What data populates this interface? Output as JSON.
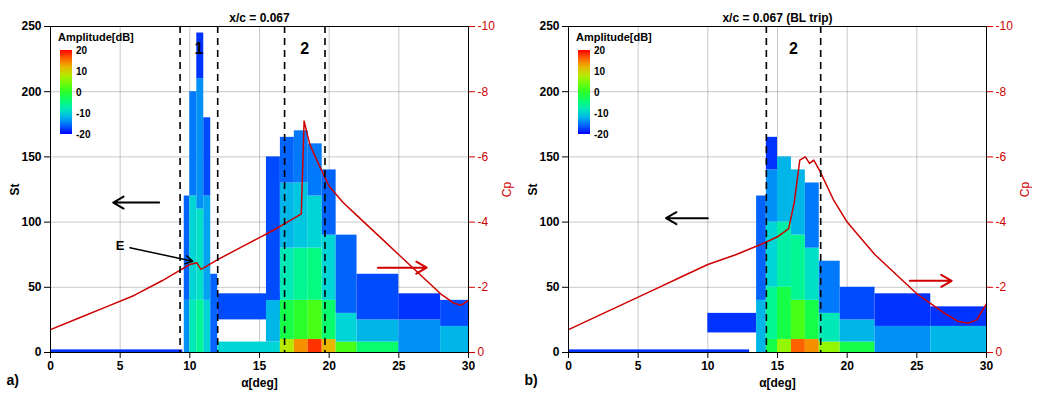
{
  "chart_data": [
    {
      "type": "heatmap",
      "title": "x/c = 0.067",
      "panel_label": "a)",
      "xlabel": "α[deg]",
      "ylabel": "St",
      "y2label": "Cp",
      "xlim": [
        0,
        30
      ],
      "xticks": [
        0,
        5,
        10,
        15,
        20,
        25,
        30
      ],
      "ylim": [
        0,
        250
      ],
      "yticks": [
        0,
        50,
        100,
        150,
        200,
        250
      ],
      "y2lim": [
        0,
        -10
      ],
      "y2ticks": [
        0,
        -2,
        -4,
        -6,
        -8,
        -10
      ],
      "grid": true,
      "colorbar": {
        "label": "Amplitude[dB]",
        "range": [
          -20,
          20
        ],
        "ticks": [
          20,
          10,
          0,
          -10,
          -20
        ]
      },
      "cells": [
        {
          "x1": 0,
          "x2": 9.5,
          "y1": 0,
          "y2": 2,
          "value": -18
        },
        {
          "x1": 9.6,
          "x2": 10.0,
          "y1": 0,
          "y2": 40,
          "value": -14
        },
        {
          "x1": 9.6,
          "x2": 10.0,
          "y1": 40,
          "y2": 120,
          "value": -16
        },
        {
          "x1": 10.0,
          "x2": 10.5,
          "y1": 0,
          "y2": 40,
          "value": -8
        },
        {
          "x1": 10.0,
          "x2": 10.5,
          "y1": 40,
          "y2": 120,
          "value": -10
        },
        {
          "x1": 10.0,
          "x2": 10.5,
          "y1": 120,
          "y2": 200,
          "value": -15
        },
        {
          "x1": 10.5,
          "x2": 11.0,
          "y1": 0,
          "y2": 40,
          "value": -6
        },
        {
          "x1": 10.5,
          "x2": 11.0,
          "y1": 40,
          "y2": 110,
          "value": -9
        },
        {
          "x1": 10.5,
          "x2": 11.0,
          "y1": 110,
          "y2": 210,
          "value": -14
        },
        {
          "x1": 10.5,
          "x2": 11.0,
          "y1": 210,
          "y2": 245,
          "value": -18
        },
        {
          "x1": 11.0,
          "x2": 11.5,
          "y1": 0,
          "y2": 40,
          "value": -10
        },
        {
          "x1": 11.0,
          "x2": 11.5,
          "y1": 40,
          "y2": 120,
          "value": -13
        },
        {
          "x1": 11.0,
          "x2": 11.5,
          "y1": 120,
          "y2": 180,
          "value": -17
        },
        {
          "x1": 11.5,
          "x2": 12.0,
          "y1": 0,
          "y2": 60,
          "value": -16
        },
        {
          "x1": 12.0,
          "x2": 16.5,
          "y1": 0,
          "y2": 8,
          "value": -10
        },
        {
          "x1": 12.0,
          "x2": 16.5,
          "y1": 25,
          "y2": 45,
          "value": -17
        },
        {
          "x1": 15.5,
          "x2": 16.5,
          "y1": 8,
          "y2": 40,
          "value": -12
        },
        {
          "x1": 15.5,
          "x2": 16.5,
          "y1": 40,
          "y2": 150,
          "value": -17
        },
        {
          "x1": 16.5,
          "x2": 17.5,
          "y1": 0,
          "y2": 10,
          "value": 8
        },
        {
          "x1": 16.5,
          "x2": 17.5,
          "y1": 10,
          "y2": 40,
          "value": -2
        },
        {
          "x1": 16.5,
          "x2": 17.5,
          "y1": 40,
          "y2": 80,
          "value": -8
        },
        {
          "x1": 16.5,
          "x2": 17.5,
          "y1": 80,
          "y2": 130,
          "value": -12
        },
        {
          "x1": 16.5,
          "x2": 17.5,
          "y1": 130,
          "y2": 165,
          "value": -16
        },
        {
          "x1": 17.5,
          "x2": 18.5,
          "y1": 0,
          "y2": 10,
          "value": 14
        },
        {
          "x1": 17.5,
          "x2": 18.5,
          "y1": 10,
          "y2": 40,
          "value": 0
        },
        {
          "x1": 17.5,
          "x2": 18.5,
          "y1": 40,
          "y2": 80,
          "value": -6
        },
        {
          "x1": 17.5,
          "x2": 18.5,
          "y1": 80,
          "y2": 130,
          "value": -11
        },
        {
          "x1": 17.5,
          "x2": 18.5,
          "y1": 130,
          "y2": 170,
          "value": -15
        },
        {
          "x1": 18.5,
          "x2": 19.5,
          "y1": 0,
          "y2": 10,
          "value": 18
        },
        {
          "x1": 18.5,
          "x2": 19.5,
          "y1": 10,
          "y2": 40,
          "value": 2
        },
        {
          "x1": 18.5,
          "x2": 19.5,
          "y1": 40,
          "y2": 80,
          "value": -5
        },
        {
          "x1": 18.5,
          "x2": 19.5,
          "y1": 80,
          "y2": 120,
          "value": -10
        },
        {
          "x1": 18.5,
          "x2": 19.5,
          "y1": 120,
          "y2": 160,
          "value": -15
        },
        {
          "x1": 19.5,
          "x2": 20.5,
          "y1": 0,
          "y2": 10,
          "value": 12
        },
        {
          "x1": 19.5,
          "x2": 20.5,
          "y1": 10,
          "y2": 40,
          "value": -4
        },
        {
          "x1": 19.5,
          "x2": 20.5,
          "y1": 40,
          "y2": 90,
          "value": -10
        },
        {
          "x1": 19.5,
          "x2": 20.5,
          "y1": 90,
          "y2": 140,
          "value": -16
        },
        {
          "x1": 20.5,
          "x2": 22,
          "y1": 0,
          "y2": 8,
          "value": 2
        },
        {
          "x1": 20.5,
          "x2": 22,
          "y1": 8,
          "y2": 30,
          "value": -10
        },
        {
          "x1": 20.5,
          "x2": 22,
          "y1": 30,
          "y2": 90,
          "value": -16
        },
        {
          "x1": 22,
          "x2": 25,
          "y1": 0,
          "y2": 8,
          "value": -4
        },
        {
          "x1": 22,
          "x2": 25,
          "y1": 8,
          "y2": 25,
          "value": -12
        },
        {
          "x1": 22,
          "x2": 25,
          "y1": 25,
          "y2": 60,
          "value": -17
        },
        {
          "x1": 25,
          "x2": 28,
          "y1": 0,
          "y2": 25,
          "value": -14
        },
        {
          "x1": 25,
          "x2": 28,
          "y1": 25,
          "y2": 45,
          "value": -18
        },
        {
          "x1": 28,
          "x2": 30,
          "y1": 0,
          "y2": 20,
          "value": -12
        },
        {
          "x1": 28,
          "x2": 30,
          "y1": 20,
          "y2": 40,
          "value": -17
        }
      ],
      "series": [
        {
          "name": "Cp",
          "type": "line",
          "axis": "y2",
          "color": "#d00000",
          "x": [
            0,
            2,
            4,
            6,
            8,
            9,
            10,
            10.5,
            10.8,
            11.2,
            12,
            14,
            16,
            17,
            18,
            18.2,
            18.6,
            19,
            20,
            21,
            22,
            23,
            24,
            25,
            26,
            27,
            28,
            29,
            29.5,
            30
          ],
          "values": [
            -0.7,
            -1.05,
            -1.4,
            -1.75,
            -2.2,
            -2.45,
            -2.7,
            -2.75,
            -2.55,
            -2.65,
            -2.85,
            -3.3,
            -3.75,
            -4.0,
            -4.25,
            -7.1,
            -6.4,
            -6.0,
            -5.1,
            -4.6,
            -4.2,
            -3.8,
            -3.4,
            -3.0,
            -2.6,
            -2.2,
            -1.8,
            -1.5,
            -1.45,
            -1.6
          ]
        }
      ],
      "regions": [
        {
          "label": "1",
          "x": [
            9.3,
            12
          ]
        },
        {
          "label": "2",
          "x": [
            16.8,
            19.7
          ]
        }
      ],
      "annotations": [
        {
          "text": "E",
          "x": 5,
          "y": 82,
          "x_to": 10.2,
          "y_to": 70
        }
      ],
      "arrows": [
        {
          "x1": 7.8,
          "x2": 4.5,
          "y1": 115,
          "y2": 115,
          "color": "#000000"
        },
        {
          "x1": 23.5,
          "x2": 27,
          "y1": 65,
          "y2": 65,
          "color": "#d00000"
        }
      ]
    },
    {
      "type": "heatmap",
      "title": "x/c = 0.067 (BL trip)",
      "panel_label": "b)",
      "xlabel": "α[deg]",
      "ylabel": "St",
      "y2label": "Cp",
      "xlim": [
        0,
        30
      ],
      "xticks": [
        0,
        5,
        10,
        15,
        20,
        25,
        30
      ],
      "ylim": [
        0,
        250
      ],
      "yticks": [
        0,
        50,
        100,
        150,
        200,
        250
      ],
      "y2lim": [
        0,
        -10
      ],
      "y2ticks": [
        0,
        -2,
        -4,
        -6,
        -8,
        -10
      ],
      "grid": true,
      "colorbar": {
        "label": "Amplitude[dB]",
        "range": [
          -20,
          20
        ],
        "ticks": [
          20,
          10,
          0,
          -10,
          -20
        ]
      },
      "cells": [
        {
          "x1": 0,
          "x2": 13,
          "y1": 0,
          "y2": 2,
          "value": -18
        },
        {
          "x1": 10,
          "x2": 13.5,
          "y1": 15,
          "y2": 30,
          "value": -18
        },
        {
          "x1": 13.5,
          "x2": 14.2,
          "y1": 0,
          "y2": 40,
          "value": -12
        },
        {
          "x1": 13.5,
          "x2": 14.2,
          "y1": 40,
          "y2": 120,
          "value": -16
        },
        {
          "x1": 14.2,
          "x2": 15,
          "y1": 0,
          "y2": 10,
          "value": -2
        },
        {
          "x1": 14.2,
          "x2": 15,
          "y1": 10,
          "y2": 50,
          "value": -6
        },
        {
          "x1": 14.2,
          "x2": 15,
          "y1": 50,
          "y2": 100,
          "value": -10
        },
        {
          "x1": 14.2,
          "x2": 15,
          "y1": 100,
          "y2": 140,
          "value": -14
        },
        {
          "x1": 14.2,
          "x2": 15,
          "y1": 140,
          "y2": 165,
          "value": -18
        },
        {
          "x1": 15,
          "x2": 16,
          "y1": 0,
          "y2": 10,
          "value": 6
        },
        {
          "x1": 15,
          "x2": 16,
          "y1": 10,
          "y2": 50,
          "value": -2
        },
        {
          "x1": 15,
          "x2": 16,
          "y1": 50,
          "y2": 100,
          "value": -7
        },
        {
          "x1": 15,
          "x2": 16,
          "y1": 100,
          "y2": 150,
          "value": -12
        },
        {
          "x1": 16,
          "x2": 17,
          "y1": 0,
          "y2": 10,
          "value": 16
        },
        {
          "x1": 16,
          "x2": 17,
          "y1": 10,
          "y2": 40,
          "value": 2
        },
        {
          "x1": 16,
          "x2": 17,
          "y1": 40,
          "y2": 90,
          "value": -6
        },
        {
          "x1": 16,
          "x2": 17,
          "y1": 90,
          "y2": 140,
          "value": -12
        },
        {
          "x1": 17,
          "x2": 18,
          "y1": 0,
          "y2": 10,
          "value": 14
        },
        {
          "x1": 17,
          "x2": 18,
          "y1": 10,
          "y2": 40,
          "value": -2
        },
        {
          "x1": 17,
          "x2": 18,
          "y1": 40,
          "y2": 80,
          "value": -9
        },
        {
          "x1": 17,
          "x2": 18,
          "y1": 80,
          "y2": 130,
          "value": -15
        },
        {
          "x1": 18,
          "x2": 19.5,
          "y1": 0,
          "y2": 8,
          "value": 6
        },
        {
          "x1": 18,
          "x2": 19.5,
          "y1": 8,
          "y2": 30,
          "value": -8
        },
        {
          "x1": 18,
          "x2": 19.5,
          "y1": 30,
          "y2": 70,
          "value": -15
        },
        {
          "x1": 19.5,
          "x2": 22,
          "y1": 0,
          "y2": 8,
          "value": -2
        },
        {
          "x1": 19.5,
          "x2": 22,
          "y1": 8,
          "y2": 25,
          "value": -12
        },
        {
          "x1": 19.5,
          "x2": 22,
          "y1": 25,
          "y2": 50,
          "value": -17
        },
        {
          "x1": 22,
          "x2": 26,
          "y1": 0,
          "y2": 20,
          "value": -14
        },
        {
          "x1": 22,
          "x2": 26,
          "y1": 20,
          "y2": 45,
          "value": -18
        },
        {
          "x1": 26,
          "x2": 30,
          "y1": 0,
          "y2": 20,
          "value": -12
        },
        {
          "x1": 26,
          "x2": 30,
          "y1": 20,
          "y2": 35,
          "value": -18
        }
      ],
      "series": [
        {
          "name": "Cp",
          "type": "line",
          "axis": "y2",
          "color": "#d00000",
          "x": [
            0,
            2,
            4,
            6,
            8,
            10,
            12,
            14,
            15,
            15.8,
            16.2,
            16.6,
            17,
            17.3,
            17.6,
            18,
            19,
            20,
            21,
            22,
            23,
            24,
            25,
            26,
            27,
            28,
            28.7,
            29.3,
            30
          ],
          "values": [
            -0.7,
            -1.1,
            -1.5,
            -1.9,
            -2.3,
            -2.7,
            -3.0,
            -3.35,
            -3.55,
            -3.8,
            -4.6,
            -5.9,
            -6.0,
            -5.8,
            -5.9,
            -5.6,
            -4.7,
            -4.0,
            -3.5,
            -3.0,
            -2.6,
            -2.2,
            -1.8,
            -1.5,
            -1.2,
            -0.95,
            -0.9,
            -1.0,
            -1.5
          ]
        }
      ],
      "regions": [
        {
          "label": "2",
          "x": [
            14.2,
            18.1
          ]
        }
      ],
      "annotations": [],
      "arrows": [
        {
          "x1": 10,
          "x2": 7,
          "y1": 103,
          "y2": 103,
          "color": "#000000"
        },
        {
          "x1": 24.5,
          "x2": 27.5,
          "y1": 55,
          "y2": 55,
          "color": "#d00000"
        }
      ]
    }
  ]
}
